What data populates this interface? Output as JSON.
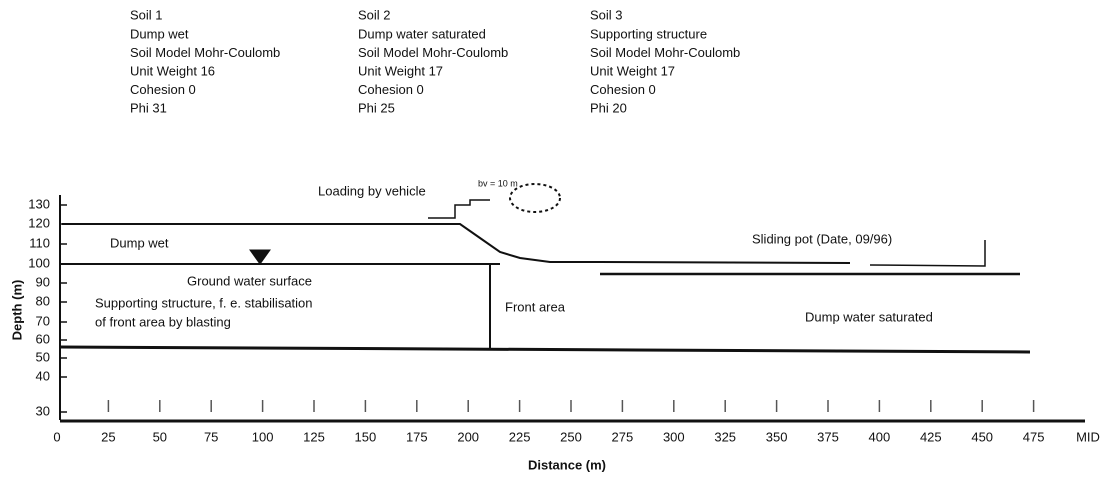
{
  "soils": [
    {
      "name": "Soil 1",
      "lines": [
        "Dump wet",
        "Soil Model Mohr-Coulomb",
        "Unit Weight 16",
        "Cohesion 0",
        "Phi 31"
      ]
    },
    {
      "name": "Soil 2",
      "lines": [
        "Dump water saturated",
        "Soil Model Mohr-Coulomb",
        "Unit Weight 17",
        "Cohesion 0",
        "Phi 25"
      ]
    },
    {
      "name": "Soil 3",
      "lines": [
        "Supporting structure",
        "Soil Model Mohr-Coulomb",
        "Unit Weight 17",
        "Cohesion 0",
        "Phi 20"
      ]
    }
  ],
  "annotations": {
    "loading": "Loading by vehicle",
    "width": "bv = 10 m",
    "dump_wet": "Dump wet",
    "ground_water": "Ground water surface",
    "supporting_1": "Supporting structure, f. e. stabilisation",
    "supporting_2": "of front area by blasting",
    "front_area": "Front area",
    "sliding_pot": "Sliding pot (Date, 09/96)",
    "dump_saturated": "Dump water saturated"
  },
  "y_axis": {
    "label": "Depth (m)",
    "ticks": [
      "130",
      "120",
      "110",
      "100",
      "90",
      "80",
      "70",
      "60",
      "50",
      "40",
      "30"
    ]
  },
  "x_axis": {
    "label": "Distance (m)",
    "ticks": [
      "0",
      "25",
      "50",
      "75",
      "100",
      "125",
      "150",
      "175",
      "200",
      "225",
      "250",
      "275",
      "300",
      "325",
      "350",
      "375",
      "400",
      "425",
      "450",
      "475",
      "MID"
    ]
  }
}
